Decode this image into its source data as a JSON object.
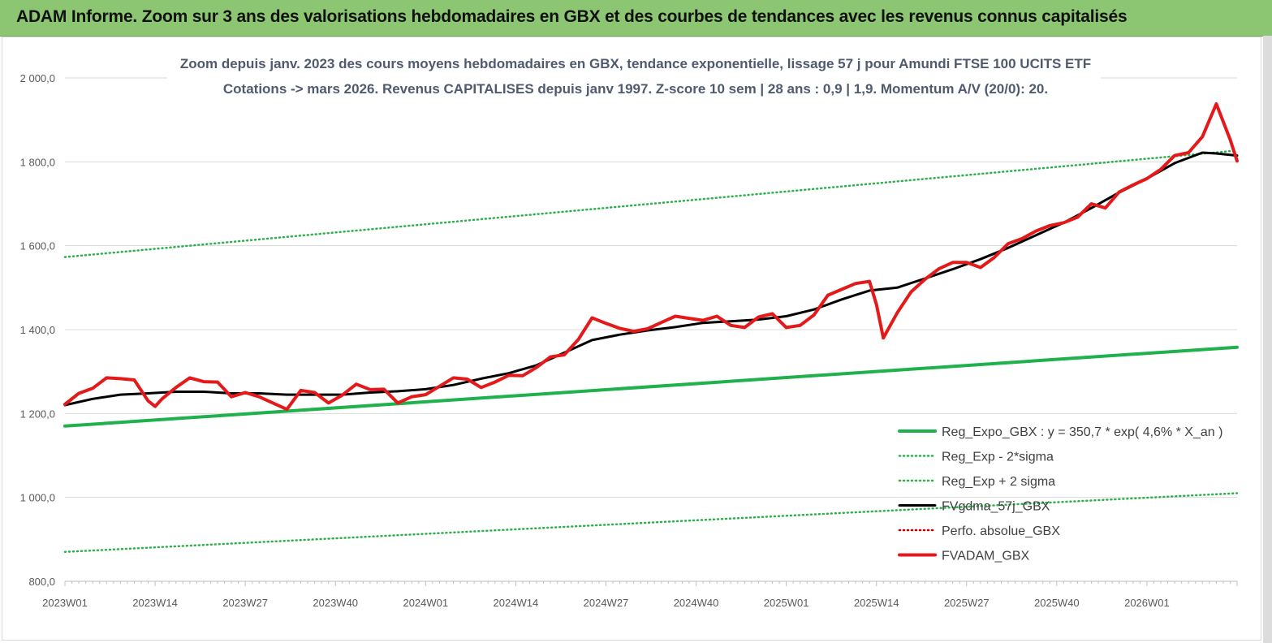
{
  "banner": {
    "title": "ADAM Informe. Zoom sur 3 ans des valorisations hebdomadaires en GBX et des courbes de tendances avec les revenus connus capitalisés"
  },
  "chart_data": {
    "type": "line",
    "title_line1": "Zoom depuis janv. 2023 des cours moyens hebdomadaires en GBX, tendance exponentielle, lissage 57 j pour Amundi FTSE 100 UCITS ETF",
    "title_line2": "Cotations -> mars 2026. Revenus CAPITALISES depuis janv 1997. Z-score 10 sem | 28 ans : 0,9 | 1,9. Momentum A/V (20/0): 20.",
    "xlabel": "",
    "ylabel": "",
    "ylim": [
      800,
      2000
    ],
    "y_ticks": [
      "800,0",
      "1 000,0",
      "1 200,0",
      "1 400,0",
      "1 600,0",
      "1 800,0",
      "2 000,0"
    ],
    "x_range": [
      0,
      169
    ],
    "x_ticks": [
      {
        "label": "2023W01",
        "x": 0
      },
      {
        "label": "2023W14",
        "x": 13
      },
      {
        "label": "2023W27",
        "x": 26
      },
      {
        "label": "2023W40",
        "x": 39
      },
      {
        "label": "2024W01",
        "x": 52
      },
      {
        "label": "2024W14",
        "x": 65
      },
      {
        "label": "2024W27",
        "x": 78
      },
      {
        "label": "2024W40",
        "x": 91
      },
      {
        "label": "2025W01",
        "x": 104
      },
      {
        "label": "2025W14",
        "x": 117
      },
      {
        "label": "2025W27",
        "x": 130
      },
      {
        "label": "2025W40",
        "x": 143
      },
      {
        "label": "2026W01",
        "x": 156
      }
    ],
    "grid": "horizontal",
    "legend_position": "bottom-right",
    "series": [
      {
        "name": "Reg_Expo_GBX : y = 350,7 * exp( 4,6% *  X_an )",
        "color": "#1fb14b",
        "style": "solid-thick",
        "x": [
          0,
          169
        ],
        "y": [
          1170,
          1358
        ]
      },
      {
        "name": "Reg_Exp - 2*sigma",
        "color": "#2bb04a",
        "style": "dotted",
        "x": [
          0,
          169
        ],
        "y": [
          870,
          1010
        ]
      },
      {
        "name": "Reg_Exp + 2 sigma",
        "color": "#2bb04a",
        "style": "dotted",
        "x": [
          0,
          169
        ],
        "y": [
          1573,
          1827
        ]
      },
      {
        "name": "FVgdma_57j_GBX",
        "color": "#000000",
        "style": "solid",
        "x": [
          0,
          4,
          8,
          12,
          16,
          20,
          24,
          28,
          32,
          36,
          40,
          44,
          48,
          52,
          56,
          60,
          64,
          68,
          72,
          76,
          80,
          84,
          88,
          92,
          96,
          100,
          104,
          108,
          112,
          116,
          120,
          124,
          128,
          132,
          136,
          140,
          144,
          148,
          152,
          156,
          160,
          164,
          166,
          169
        ],
        "y": [
          1220,
          1235,
          1245,
          1248,
          1252,
          1252,
          1248,
          1248,
          1245,
          1245,
          1245,
          1250,
          1253,
          1258,
          1268,
          1283,
          1296,
          1315,
          1345,
          1375,
          1388,
          1398,
          1406,
          1416,
          1420,
          1424,
          1432,
          1448,
          1472,
          1493,
          1500,
          1522,
          1544,
          1568,
          1595,
          1625,
          1655,
          1690,
          1727,
          1760,
          1797,
          1822,
          1820,
          1815
        ]
      },
      {
        "name": "Perfo. absolue_GBX",
        "color": "#c00000",
        "style": "dotted",
        "x": [],
        "y": []
      },
      {
        "name": "FVADAM_GBX",
        "color": "#e41a1a",
        "style": "solid-thick",
        "x": [
          0,
          2,
          4,
          6,
          8,
          10,
          12,
          13,
          14,
          16,
          18,
          20,
          22,
          24,
          26,
          28,
          30,
          32,
          34,
          36,
          38,
          40,
          42,
          44,
          46,
          48,
          50,
          52,
          54,
          56,
          58,
          60,
          62,
          64,
          66,
          68,
          70,
          72,
          74,
          76,
          78,
          80,
          82,
          84,
          86,
          88,
          90,
          92,
          94,
          96,
          98,
          100,
          102,
          104,
          106,
          108,
          110,
          112,
          114,
          116,
          117,
          118,
          120,
          122,
          124,
          126,
          128,
          130,
          132,
          134,
          136,
          138,
          140,
          142,
          144,
          146,
          148,
          150,
          152,
          154,
          156,
          158,
          160,
          162,
          164,
          166,
          168,
          169
        ],
        "y": [
          1222,
          1248,
          1260,
          1285,
          1283,
          1280,
          1230,
          1217,
          1235,
          1262,
          1285,
          1276,
          1275,
          1240,
          1250,
          1240,
          1225,
          1210,
          1255,
          1250,
          1225,
          1244,
          1270,
          1257,
          1258,
          1225,
          1240,
          1245,
          1265,
          1285,
          1282,
          1262,
          1275,
          1291,
          1290,
          1310,
          1335,
          1340,
          1376,
          1428,
          1415,
          1403,
          1396,
          1402,
          1417,
          1432,
          1427,
          1422,
          1432,
          1410,
          1405,
          1430,
          1438,
          1405,
          1410,
          1435,
          1482,
          1496,
          1510,
          1515,
          1460,
          1380,
          1440,
          1490,
          1520,
          1545,
          1560,
          1560,
          1548,
          1572,
          1605,
          1617,
          1635,
          1648,
          1655,
          1668,
          1700,
          1690,
          1728,
          1745,
          1760,
          1782,
          1815,
          1822,
          1860,
          1938,
          1853,
          1802
        ]
      }
    ]
  }
}
